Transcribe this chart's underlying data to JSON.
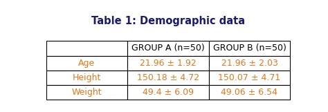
{
  "title": "Table 1: Demographic data",
  "col_headers": [
    "",
    "GROUP A (n=50)",
    "GROUP B (n=50)"
  ],
  "rows": [
    [
      "Age",
      "21.96 ± 1.92",
      "21.96 ± 2.03"
    ],
    [
      "Height",
      "150.18 ± 4.72",
      "150.07 ± 4.71"
    ],
    [
      "Weight",
      "49.4 ± 6.09",
      "49.06 ± 6.54"
    ]
  ],
  "title_fontsize": 10.5,
  "header_fontsize": 9,
  "cell_fontsize": 9,
  "data_text_color": "#E07820",
  "header_text_color": "#000000",
  "title_color": "#1a1a6e",
  "bg_color": "#ffffff",
  "figsize": [
    4.74,
    1.62
  ],
  "dpi": 100
}
